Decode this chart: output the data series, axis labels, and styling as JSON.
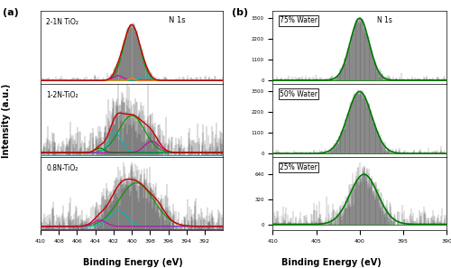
{
  "panel_a_label": "(a)",
  "panel_b_label": "(b)",
  "xlabel": "Binding Energy (eV)",
  "ylabel": "Intensity (a.u.)",
  "panel_a_labels": [
    "2-1N TiO₂",
    "1-2N-TiO₂",
    "0.8N-TiO₂"
  ],
  "panel_b_labels": [
    "75% Water",
    "50% Water",
    "25% Water"
  ],
  "n1s_label": "N 1s",
  "bg_color": "#ffffff",
  "line_colors": {
    "red": "#cc0000",
    "green": "#009900",
    "cyan": "#00bbbb",
    "magenta": "#cc00aa",
    "orange": "#ff8800",
    "dark_green": "#007700"
  }
}
